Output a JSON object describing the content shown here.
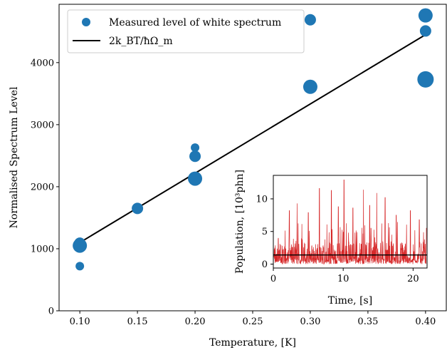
{
  "chart_data": [
    {
      "type": "scatter",
      "xlabel": "Temperature, [K]",
      "ylabel": "Normalised Spectrum Level",
      "xlim": [
        0.082,
        0.418
      ],
      "ylim": [
        0,
        4940
      ],
      "x_ticks": [
        "0.10",
        "0.15",
        "0.20",
        "0.25",
        "0.30",
        "0.35",
        "0.40"
      ],
      "y_ticks": [
        "0",
        "1000",
        "2000",
        "3000",
        "4000"
      ],
      "x_tick_values": [
        0.1,
        0.15,
        0.2,
        0.25,
        0.3,
        0.35,
        0.4
      ],
      "y_tick_values": [
        0,
        1000,
        2000,
        3000,
        4000
      ],
      "legend_position": "top-left",
      "series": [
        {
          "name": "Measured level of white spectrum",
          "kind": "scatter",
          "color": "#1f77b4",
          "points": [
            {
              "x": 0.1,
              "y": 720,
              "size": "small"
            },
            {
              "x": 0.1,
              "y": 1050,
              "size": "large"
            },
            {
              "x": 0.1,
              "y": 1090,
              "size": "medium"
            },
            {
              "x": 0.15,
              "y": 1650,
              "size": "medium"
            },
            {
              "x": 0.2,
              "y": 2130,
              "size": "large"
            },
            {
              "x": 0.2,
              "y": 2490,
              "size": "medium"
            },
            {
              "x": 0.2,
              "y": 2630,
              "size": "small"
            },
            {
              "x": 0.3,
              "y": 3610,
              "size": "large"
            },
            {
              "x": 0.3,
              "y": 4690,
              "size": "medium"
            },
            {
              "x": 0.4,
              "y": 3730,
              "size": "xlarge"
            },
            {
              "x": 0.4,
              "y": 4510,
              "size": "medium"
            },
            {
              "x": 0.4,
              "y": 4760,
              "size": "large"
            }
          ]
        },
        {
          "name": "2k_BT/ħΩ_m",
          "kind": "line",
          "color": "#000000",
          "x": [
            0.1,
            0.4
          ],
          "y": [
            1100,
            4450
          ]
        }
      ]
    },
    {
      "type": "line",
      "xlabel": "Time, [s]",
      "ylabel": "Population, [10³phn]",
      "xlim": [
        0,
        22
      ],
      "ylim": [
        -0.6,
        13.6
      ],
      "x_ticks": [
        "0",
        "10",
        "20"
      ],
      "y_ticks": [
        "0",
        "5",
        "10"
      ],
      "x_tick_values": [
        0,
        10,
        20
      ],
      "y_tick_values": [
        0,
        5,
        10
      ],
      "series": [
        {
          "kind": "noise",
          "color": "#d62728",
          "mean": 1.4,
          "max": 12.9
        },
        {
          "kind": "hline",
          "color": "#000000",
          "y": 1.4
        }
      ]
    }
  ]
}
